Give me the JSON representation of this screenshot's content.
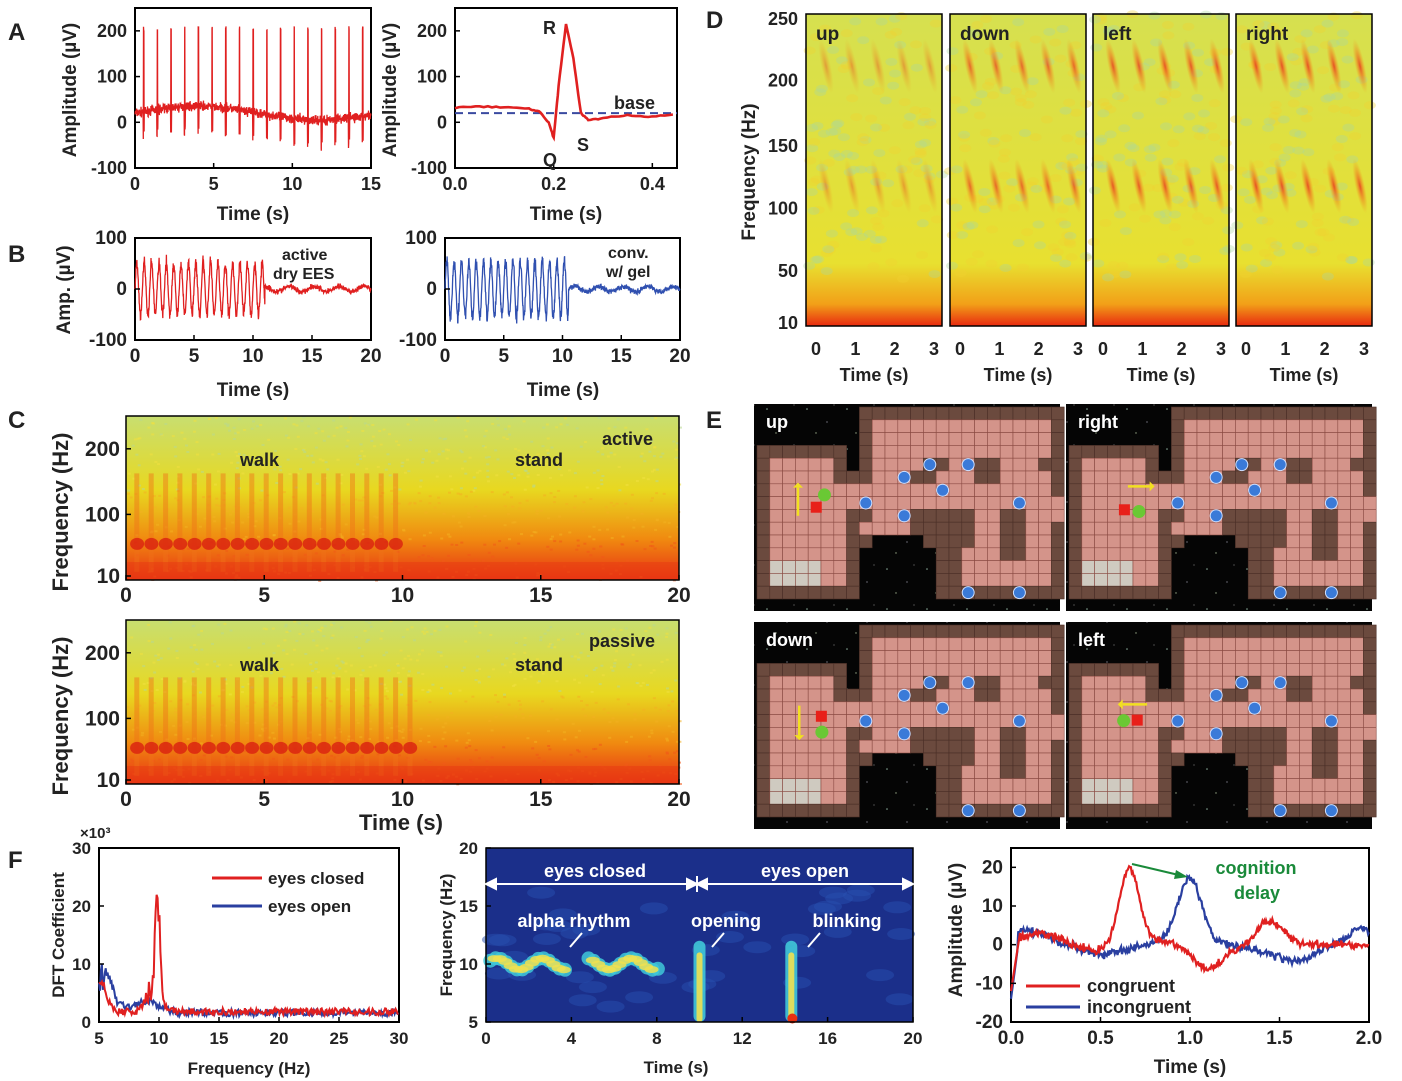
{
  "panel_letters": [
    "A",
    "B",
    "C",
    "D",
    "E",
    "F"
  ],
  "chart_data": [
    {
      "id": "A1",
      "type": "line",
      "xlabel": "Time (s)",
      "ylabel": "Amplitude (µV)",
      "xlim": [
        0,
        15
      ],
      "ylim": [
        -100,
        250
      ],
      "xticks": [
        "0",
        "5",
        "10",
        "15"
      ],
      "yticks": [
        "-100",
        "0",
        "100",
        "200"
      ],
      "color": "#e02020",
      "beat_interval_s": 0.87,
      "peak_uV": 210,
      "baseline_uV": 20,
      "noise_uV": 15
    },
    {
      "id": "A2",
      "type": "line",
      "xlabel": "Time (s)",
      "ylabel": "Amplitude (µV)",
      "xlim": [
        0,
        0.45
      ],
      "ylim": [
        -100,
        250
      ],
      "xticks": [
        "0.0",
        "0.2",
        "0.4"
      ],
      "yticks": [
        "-100",
        "0",
        "100",
        "200"
      ],
      "color": "#e02020",
      "x": [
        0,
        0.05,
        0.1,
        0.15,
        0.17,
        0.19,
        0.2,
        0.21,
        0.225,
        0.24,
        0.255,
        0.27,
        0.3,
        0.35,
        0.4,
        0.45
      ],
      "y": [
        32,
        35,
        32,
        30,
        25,
        0,
        -35,
        80,
        215,
        140,
        20,
        5,
        8,
        15,
        12,
        18
      ],
      "baseline": 20,
      "annotations": [
        "R",
        "Q",
        "S",
        "base"
      ]
    },
    {
      "id": "B1",
      "type": "line",
      "xlabel": "Time (s)",
      "ylabel": "Amp. (µV)",
      "xlim": [
        0,
        20
      ],
      "ylim": [
        -100,
        100
      ],
      "xticks": [
        "0",
        "5",
        "10",
        "15",
        "20"
      ],
      "yticks": [
        "-100",
        "0",
        "100"
      ],
      "color": "#e02020",
      "legend": [
        "active",
        "dry EES"
      ],
      "active_until_s": 11,
      "amplitude_uV": 55
    },
    {
      "id": "B2",
      "type": "line",
      "xlabel": "Time (s)",
      "xlim": [
        0,
        20
      ],
      "ylim": [
        -100,
        100
      ],
      "xticks": [
        "0",
        "5",
        "10",
        "15",
        "20"
      ],
      "yticks": [
        "-100",
        "0",
        "100"
      ],
      "color": "#3050b0",
      "legend": [
        "conv.",
        "w/ gel"
      ],
      "active_until_s": 10.5,
      "amplitude_uV": 60
    },
    {
      "id": "C1",
      "type": "heatmap",
      "ylabel": "Frequency (Hz)",
      "xlim": [
        0,
        20
      ],
      "xticks": [
        "0",
        "5",
        "10",
        "15",
        "20"
      ],
      "yticks": [
        "10",
        "100",
        "200"
      ],
      "labels": [
        "walk",
        "stand",
        "active"
      ],
      "walk_until_s": 10
    },
    {
      "id": "C2",
      "type": "heatmap",
      "xlabel": "Time (s)",
      "ylabel": "Frequency (Hz)",
      "xlim": [
        0,
        20
      ],
      "xticks": [
        "0",
        "5",
        "10",
        "15",
        "20"
      ],
      "yticks": [
        "10",
        "100",
        "200"
      ],
      "labels": [
        "walk",
        "stand",
        "passive"
      ],
      "walk_until_s": 10.5
    },
    {
      "id": "D",
      "type": "heatmap",
      "ylabel": "Frequency (Hz)",
      "xlabel": "Time (s)",
      "yticks": [
        "10",
        "50",
        "100",
        "150",
        "200",
        "250"
      ],
      "xticks": [
        "0",
        "1",
        "2",
        "3"
      ],
      "panels": [
        "up",
        "down",
        "left",
        "right"
      ]
    },
    {
      "id": "F1",
      "type": "line",
      "xlabel": "Frequency (Hz)",
      "ylabel": "DFT Coefficient",
      "multiplier": "×10³",
      "xlim": [
        5,
        30
      ],
      "ylim": [
        0,
        30
      ],
      "xticks": [
        "5",
        "10",
        "15",
        "20",
        "25",
        "30"
      ],
      "yticks": [
        "0",
        "10",
        "20",
        "30"
      ],
      "series": [
        {
          "name": "eyes closed",
          "color": "#e02020",
          "peak_hz": 10,
          "peak": 22
        },
        {
          "name": "eyes open",
          "color": "#2a3fa0",
          "peak_hz": 5.5,
          "peak": 10
        }
      ]
    },
    {
      "id": "F2",
      "type": "heatmap",
      "xlabel": "Time (s)",
      "ylabel": "Frequency (Hz)",
      "xlim": [
        0,
        20
      ],
      "ylim": [
        5,
        20
      ],
      "xticks": [
        "0",
        "4",
        "8",
        "12",
        "16",
        "20"
      ],
      "yticks": [
        "5",
        "10",
        "15",
        "20"
      ],
      "labels": {
        "closed": "eyes closed",
        "open": "eyes open",
        "alpha": "alpha rhythm",
        "opening": "opening",
        "blinking": "blinking"
      }
    },
    {
      "id": "F3",
      "type": "line",
      "xlabel": "Time (s)",
      "ylabel": "Amplitude (µV)",
      "xlim": [
        0,
        2
      ],
      "ylim": [
        -20,
        25
      ],
      "xticks": [
        "0.0",
        "0.5",
        "1.0",
        "1.5",
        "2.0"
      ],
      "yticks": [
        "-20",
        "-10",
        "0",
        "10",
        "20"
      ],
      "series": [
        {
          "name": "congruent",
          "color": "#e02020",
          "peak_s": 0.66,
          "peak": 20
        },
        {
          "name": "incongruent",
          "color": "#2a3fa0",
          "peak_s": 1.0,
          "peak": 17
        }
      ],
      "annotation": [
        "cognition",
        "delay"
      ]
    }
  ],
  "game_panels": [
    "up",
    "right",
    "down",
    "left"
  ],
  "colors": {
    "red": "#e02020",
    "blue": "#2a3fa0",
    "green": "#1a8a3a",
    "tile": "#d4948a",
    "wall": "#6b4a3e"
  }
}
